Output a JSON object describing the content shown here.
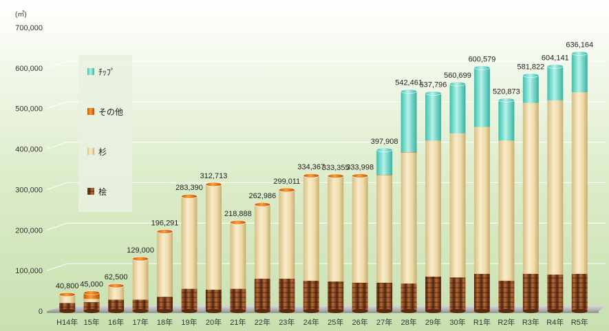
{
  "chart_data": {
    "type": "bar",
    "stacked": true,
    "unit": "(㎥)",
    "categories": [
      "H14年",
      "15年",
      "16年",
      "17年",
      "18年",
      "19年",
      "20年",
      "21年",
      "22年",
      "23年",
      "24年",
      "25年",
      "26年",
      "27年",
      "28年",
      "29年",
      "30年",
      "R1年",
      "R2年",
      "R3年",
      "R4年",
      "R5年"
    ],
    "totals": [
      40800,
      45000,
      62500,
      129000,
      196291,
      283390,
      312713,
      218888,
      262986,
      299011,
      334367,
      333355,
      333998,
      397908,
      542461,
      537796,
      560699,
      600579,
      520873,
      581822,
      604141,
      636164
    ],
    "total_labels": [
      "40,800",
      "45,000",
      "62,500",
      "129,000",
      "196,291",
      "283,390",
      "312,713",
      "218,888",
      "262,986",
      "299,011",
      "334,367",
      "333,355",
      "333,998",
      "397,908",
      "542,461",
      "537,796",
      "560,699",
      "600,579",
      "520,873",
      "581,822",
      "604,141",
      "636,164"
    ],
    "series": [
      {
        "name": "桧",
        "color": "#8b4a22",
        "values": [
          20000,
          22000,
          28000,
          28000,
          35000,
          55000,
          53000,
          55000,
          80000,
          80000,
          75000,
          73000,
          70000,
          70000,
          68000,
          85000,
          83000,
          92000,
          75000,
          92000,
          90000,
          92000
        ]
      },
      {
        "name": "杉",
        "color": "#ecd9a3",
        "values": [
          17800,
          8000,
          32500,
          99000,
          159291,
          226390,
          257713,
          162888,
          180986,
          216011,
          257367,
          258355,
          262998,
          264908,
          323461,
          335796,
          355699,
          362579,
          345873,
          421822,
          430141,
          448164
        ]
      },
      {
        "name": "その他",
        "color": "#f07a10",
        "values": [
          3000,
          15000,
          2000,
          2000,
          2000,
          2000,
          2000,
          1000,
          2000,
          3000,
          2000,
          2000,
          1000,
          1000,
          1000,
          0,
          0,
          0,
          0,
          0,
          0,
          0
        ]
      },
      {
        "name": "ﾁｯﾌﾟ",
        "color": "#5ed8c8",
        "values": [
          0,
          0,
          0,
          0,
          0,
          0,
          0,
          0,
          0,
          0,
          0,
          0,
          0,
          62000,
          150000,
          117000,
          122000,
          146000,
          100000,
          68000,
          84000,
          96000
        ]
      }
    ],
    "legend_order": [
      "ﾁｯﾌﾟ",
      "その他",
      "杉",
      "桧"
    ],
    "ylim": [
      0,
      700000
    ],
    "yticks": [
      "0",
      "100,000",
      "200,000",
      "300,000",
      "400,000",
      "500,000",
      "600,000",
      "700,000"
    ],
    "grid": true,
    "legend_position": "left"
  }
}
